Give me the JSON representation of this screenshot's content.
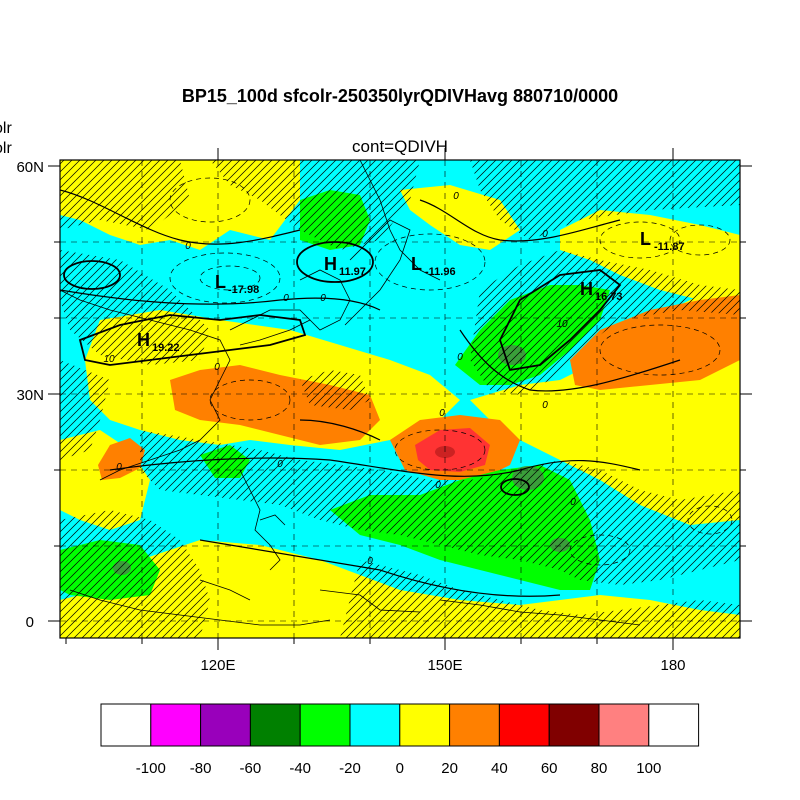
{
  "header": {
    "title": "BP15_100d sfcolr-250350lyrQDIVHavg  880710/0000",
    "subtitle": "cont=QDIVH",
    "left_label_1": "olr",
    "left_label_2": "olr"
  },
  "axes": {
    "y_ticks": [
      "60N",
      "30N",
      "0"
    ],
    "x_ticks": [
      "120E",
      "150E",
      "180"
    ]
  },
  "pressure_labels": [
    {
      "kind": "H",
      "value": "11.97"
    },
    {
      "kind": "L",
      "value": "-11.96"
    },
    {
      "kind": "L",
      "value": "-11.87"
    },
    {
      "kind": "L",
      "value": "-17.98"
    },
    {
      "kind": "H",
      "value": "16.73"
    },
    {
      "kind": "H",
      "value": "19.22"
    }
  ],
  "contour_labels": [
    "0",
    "0",
    "0",
    "0",
    "0",
    "0",
    "0",
    "0",
    "0",
    "0",
    "0",
    "0",
    "0",
    "0",
    "10",
    "10"
  ],
  "colorbar": {
    "labels": [
      "-100",
      "-80",
      "-60",
      "-40",
      "-20",
      "0",
      "20",
      "40",
      "60",
      "80",
      "100"
    ],
    "colors": [
      "#ffffff",
      "#ff00ff",
      "#9900bb",
      "#008000",
      "#00ff00",
      "#00ffff",
      "#ffff00",
      "#ff8000",
      "#ff0000",
      "#800000",
      "#ff8080",
      "#ffffff"
    ]
  }
}
